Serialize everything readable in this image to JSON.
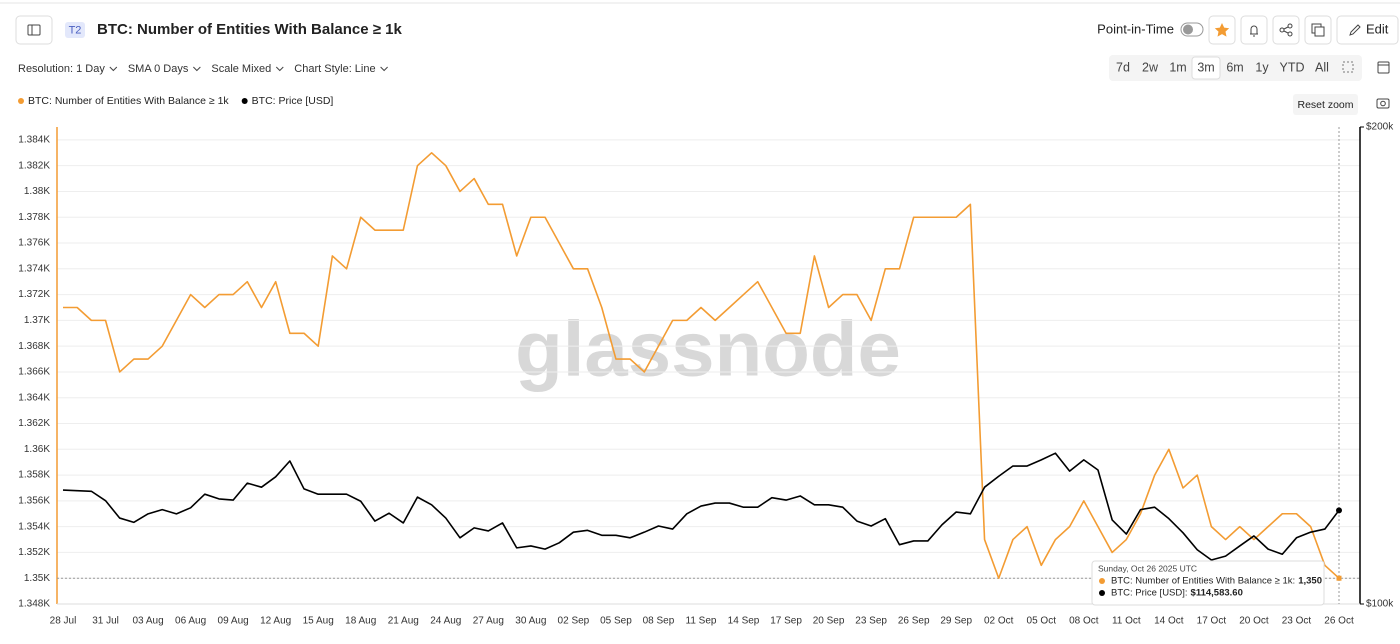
{
  "ui": {
    "badge": "T2",
    "point_in_time": "Point-in-Time",
    "edit": "Edit",
    "toolbar": [
      "Resolution: 1 Day",
      "SMA 0 Days",
      "Scale Mixed",
      "Chart Style: Line"
    ],
    "ranges": [
      "7d",
      "2w",
      "1m",
      "3m",
      "6m",
      "1y",
      "YTD",
      "All"
    ],
    "active_range": "3m",
    "reset_zoom": "Reset zoom",
    "watermark": "glassnode",
    "tooltip": {
      "title": "Sunday, Oct 26 2025 UTC",
      "items": [
        {
          "label": "BTC: Number of Entities With Balance ≥ 1k:",
          "value": "1,350"
        },
        {
          "label": "BTC: Price [USD]:",
          "value": "$114,583.60"
        }
      ]
    }
  },
  "chart_data": {
    "type": "line",
    "title": "BTC: Number of Entities With Balance ≥ 1k",
    "categories": [
      "28 Jul",
      null,
      null,
      "31 Jul",
      null,
      null,
      "03 Aug",
      null,
      null,
      "06 Aug",
      null,
      null,
      "09 Aug",
      null,
      null,
      "12 Aug",
      null,
      null,
      "15 Aug",
      null,
      null,
      "18 Aug",
      null,
      null,
      "21 Aug",
      null,
      null,
      "24 Aug",
      null,
      null,
      "27 Aug",
      null,
      null,
      "30 Aug",
      null,
      null,
      "02 Sep",
      null,
      null,
      "05 Sep",
      null,
      null,
      "08 Sep",
      null,
      null,
      "11 Sep",
      null,
      null,
      "14 Sep",
      null,
      null,
      "17 Sep",
      null,
      null,
      "20 Sep",
      null,
      null,
      "23 Sep",
      null,
      null,
      "26 Sep",
      null,
      null,
      "29 Sep",
      null,
      null,
      "02 Oct",
      null,
      null,
      "05 Oct",
      null,
      null,
      "08 Oct",
      null,
      null,
      "11 Oct",
      null,
      null,
      "14 Oct",
      null,
      null,
      "17 Oct",
      null,
      null,
      "20 Oct",
      null,
      null,
      "23 Oct",
      null,
      null,
      "26 Oct"
    ],
    "series": [
      {
        "name": "BTC: Number of Entities With Balance ≥ 1k",
        "color": "#f39c33",
        "values": [
          1371,
          1371,
          1370,
          1370,
          1366,
          1367,
          1367,
          1368,
          1370,
          1372,
          1371,
          1372,
          1372,
          1373,
          1371,
          1373,
          1369,
          1369,
          1368,
          1375,
          1374,
          1378,
          1377,
          1377,
          1377,
          1382,
          1383,
          1382,
          1380,
          1381,
          1379,
          1379,
          1375,
          1378,
          1378,
          1376,
          1374,
          1374,
          1371,
          1367,
          1367,
          1366,
          1368,
          1370,
          1370,
          1371,
          1370,
          1371,
          1372,
          1373,
          1371,
          1369,
          1369,
          1375,
          1371,
          1372,
          1372,
          1370,
          1374,
          1374,
          1378,
          1378,
          1378,
          1378,
          1379,
          1353,
          1350,
          1353,
          1354,
          1351,
          1353,
          1354,
          1356,
          1354,
          1352,
          1353,
          1355,
          1358,
          1360,
          1357,
          1358,
          1354,
          1353,
          1354,
          1353,
          1354,
          1355,
          1355,
          1354,
          1351,
          1350
        ]
      },
      {
        "name": "BTC: Price [USD]",
        "color": "#000000",
        "axis": "y2",
        "values": [
          118000,
          117900,
          117800,
          116200,
          113300,
          112600,
          114000,
          114700,
          114000,
          115000,
          117300,
          116500,
          116300,
          119200,
          118500,
          120300,
          123100,
          118200,
          117300,
          117300,
          117300,
          116100,
          112800,
          114100,
          112500,
          116800,
          115500,
          113300,
          110100,
          111700,
          111200,
          112500,
          108500,
          108800,
          108300,
          109300,
          111000,
          111300,
          110500,
          110500,
          110100,
          111000,
          112000,
          111500,
          114000,
          115300,
          115800,
          115800,
          115100,
          115100,
          116700,
          116300,
          117000,
          115500,
          115500,
          115100,
          112800,
          112000,
          113200,
          109000,
          109600,
          109600,
          112200,
          114300,
          114000,
          118500,
          120400,
          122200,
          122200,
          123300,
          124500,
          121300,
          123300,
          121500,
          113000,
          110700,
          114700,
          115100,
          113200,
          110900,
          108200,
          106600,
          107200,
          108800,
          110400,
          108300,
          107500,
          110100,
          111000,
          111500,
          114583.6
        ]
      }
    ],
    "ylim": [
      1348,
      1385
    ],
    "yticks": [
      {
        "value": 1348,
        "label": "1.348K"
      },
      {
        "value": 1350,
        "label": "1.35K"
      },
      {
        "value": 1352,
        "label": "1.352K"
      },
      {
        "value": 1354,
        "label": "1.354K"
      },
      {
        "value": 1356,
        "label": "1.356K"
      },
      {
        "value": 1358,
        "label": "1.358K"
      },
      {
        "value": 1360,
        "label": "1.36K"
      },
      {
        "value": 1362,
        "label": "1.362K"
      },
      {
        "value": 1364,
        "label": "1.364K"
      },
      {
        "value": 1366,
        "label": "1.366K"
      },
      {
        "value": 1368,
        "label": "1.368K"
      },
      {
        "value": 1370,
        "label": "1.37K"
      },
      {
        "value": 1372,
        "label": "1.372K"
      },
      {
        "value": 1374,
        "label": "1.374K"
      },
      {
        "value": 1376,
        "label": "1.376K"
      },
      {
        "value": 1378,
        "label": "1.378K"
      },
      {
        "value": 1380,
        "label": "1.38K"
      },
      {
        "value": 1382,
        "label": "1.382K"
      },
      {
        "value": 1384,
        "label": "1.384K"
      }
    ],
    "y2lim": [
      100000,
      200000
    ],
    "y2log": true,
    "y2ticks": [
      {
        "value": 100000,
        "label": "$100k"
      },
      {
        "value": 200000,
        "label": "$200k"
      }
    ],
    "grid": true
  }
}
